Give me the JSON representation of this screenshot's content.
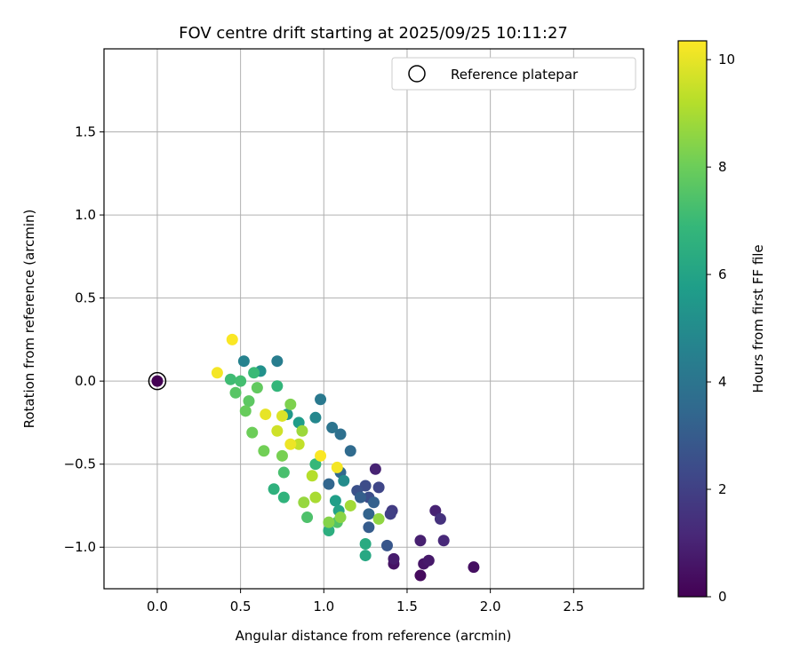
{
  "chart_data": {
    "type": "scatter",
    "title": "FOV centre drift starting at 2025/09/25 10:11:27",
    "xlabel": "Angular distance from reference (arcmin)",
    "ylabel": "Rotation from reference (arcmin)",
    "xlim": [
      -0.32,
      2.92
    ],
    "ylim": [
      -1.25,
      2.0
    ],
    "xticks": [
      0.0,
      0.5,
      1.0,
      1.5,
      2.0,
      2.5
    ],
    "xtick_labels": [
      "0.0",
      "0.5",
      "1.0",
      "1.5",
      "2.0",
      "2.5"
    ],
    "yticks": [
      -1.0,
      -0.5,
      0.0,
      0.5,
      1.0,
      1.5
    ],
    "ytick_labels": [
      "−1.0",
      "−0.5",
      "0.0",
      "0.5",
      "1.0",
      "1.5"
    ],
    "grid": true,
    "legend": {
      "position": "top-right",
      "entries": [
        "Reference platepar"
      ]
    },
    "reference_point": {
      "x": 0.0,
      "y": 0.0
    },
    "colorbar": {
      "label": "Hours from first FF file",
      "min": 0,
      "max": 10.35,
      "ticks": [
        0,
        2,
        4,
        6,
        8,
        10
      ],
      "tick_labels": [
        "0",
        "2",
        "4",
        "6",
        "8",
        "10"
      ],
      "colormap": [
        "#440154",
        "#482878",
        "#3e4989",
        "#31688e",
        "#26828e",
        "#1f9e89",
        "#35b779",
        "#6ece58",
        "#b5de2b",
        "#fde725"
      ]
    },
    "points": [
      {
        "x": 0.0,
        "y": 0.0,
        "t": 0.0
      },
      {
        "x": 1.58,
        "y": -1.17,
        "t": 0.3
      },
      {
        "x": 1.9,
        "y": -1.12,
        "t": 0.4
      },
      {
        "x": 1.42,
        "y": -1.1,
        "t": 0.5
      },
      {
        "x": 1.6,
        "y": -1.1,
        "t": 0.6
      },
      {
        "x": 1.63,
        "y": -1.08,
        "t": 0.7
      },
      {
        "x": 1.42,
        "y": -1.07,
        "t": 0.8
      },
      {
        "x": 1.58,
        "y": -0.96,
        "t": 0.9
      },
      {
        "x": 1.67,
        "y": -0.78,
        "t": 1.0
      },
      {
        "x": 1.31,
        "y": -0.53,
        "t": 1.0
      },
      {
        "x": 1.72,
        "y": -0.96,
        "t": 1.2
      },
      {
        "x": 1.7,
        "y": -0.83,
        "t": 1.5
      },
      {
        "x": 1.41,
        "y": -0.78,
        "t": 1.8
      },
      {
        "x": 1.4,
        "y": -0.8,
        "t": 2.0
      },
      {
        "x": 1.33,
        "y": -0.64,
        "t": 2.2
      },
      {
        "x": 1.25,
        "y": -0.63,
        "t": 2.4
      },
      {
        "x": 1.27,
        "y": -0.7,
        "t": 2.5
      },
      {
        "x": 1.2,
        "y": -0.66,
        "t": 2.6
      },
      {
        "x": 1.38,
        "y": -0.99,
        "t": 2.8
      },
      {
        "x": 1.27,
        "y": -0.88,
        "t": 3.0
      },
      {
        "x": 1.22,
        "y": -0.7,
        "t": 3.1
      },
      {
        "x": 1.3,
        "y": -0.73,
        "t": 3.2
      },
      {
        "x": 1.27,
        "y": -0.8,
        "t": 3.3
      },
      {
        "x": 1.03,
        "y": -0.62,
        "t": 3.4
      },
      {
        "x": 1.1,
        "y": -0.55,
        "t": 3.5
      },
      {
        "x": 1.16,
        "y": -0.42,
        "t": 3.6
      },
      {
        "x": 1.1,
        "y": -0.32,
        "t": 3.8
      },
      {
        "x": 1.05,
        "y": -0.28,
        "t": 4.0
      },
      {
        "x": 0.98,
        "y": -0.11,
        "t": 4.2
      },
      {
        "x": 0.72,
        "y": 0.12,
        "t": 4.4
      },
      {
        "x": 0.52,
        "y": 0.12,
        "t": 4.6
      },
      {
        "x": 0.95,
        "y": -0.22,
        "t": 4.8
      },
      {
        "x": 1.12,
        "y": -0.6,
        "t": 5.0
      },
      {
        "x": 0.62,
        "y": 0.06,
        "t": 5.2
      },
      {
        "x": 0.78,
        "y": -0.2,
        "t": 5.5
      },
      {
        "x": 0.85,
        "y": -0.25,
        "t": 5.7
      },
      {
        "x": 1.07,
        "y": -0.72,
        "t": 5.8
      },
      {
        "x": 1.09,
        "y": -0.78,
        "t": 6.0
      },
      {
        "x": 1.25,
        "y": -1.05,
        "t": 6.2
      },
      {
        "x": 1.25,
        "y": -0.98,
        "t": 6.3
      },
      {
        "x": 1.03,
        "y": -0.9,
        "t": 6.5
      },
      {
        "x": 0.7,
        "y": -0.65,
        "t": 6.6
      },
      {
        "x": 0.76,
        "y": -0.7,
        "t": 6.7
      },
      {
        "x": 0.72,
        "y": -0.03,
        "t": 6.8
      },
      {
        "x": 0.95,
        "y": -0.5,
        "t": 6.9
      },
      {
        "x": 0.58,
        "y": 0.05,
        "t": 7.0
      },
      {
        "x": 0.44,
        "y": 0.01,
        "t": 7.1
      },
      {
        "x": 0.5,
        "y": 0.0,
        "t": 7.2
      },
      {
        "x": 0.76,
        "y": -0.55,
        "t": 7.3
      },
      {
        "x": 0.9,
        "y": -0.82,
        "t": 7.4
      },
      {
        "x": 1.08,
        "y": -0.85,
        "t": 7.5
      },
      {
        "x": 0.47,
        "y": -0.07,
        "t": 7.6
      },
      {
        "x": 0.55,
        "y": -0.12,
        "t": 7.7
      },
      {
        "x": 0.6,
        "y": -0.04,
        "t": 7.8
      },
      {
        "x": 0.53,
        "y": -0.18,
        "t": 7.9
      },
      {
        "x": 0.57,
        "y": -0.31,
        "t": 8.0
      },
      {
        "x": 0.64,
        "y": -0.42,
        "t": 8.1
      },
      {
        "x": 0.75,
        "y": -0.45,
        "t": 8.2
      },
      {
        "x": 0.8,
        "y": -0.14,
        "t": 8.3
      },
      {
        "x": 1.03,
        "y": -0.85,
        "t": 8.4
      },
      {
        "x": 1.1,
        "y": -0.82,
        "t": 8.5
      },
      {
        "x": 1.33,
        "y": -0.83,
        "t": 8.6
      },
      {
        "x": 0.88,
        "y": -0.73,
        "t": 8.7
      },
      {
        "x": 0.87,
        "y": -0.3,
        "t": 8.8
      },
      {
        "x": 1.16,
        "y": -0.75,
        "t": 8.9
      },
      {
        "x": 0.95,
        "y": -0.7,
        "t": 9.0
      },
      {
        "x": 0.93,
        "y": -0.57,
        "t": 9.2
      },
      {
        "x": 0.85,
        "y": -0.38,
        "t": 9.4
      },
      {
        "x": 0.72,
        "y": -0.3,
        "t": 9.6
      },
      {
        "x": 0.75,
        "y": -0.21,
        "t": 9.8
      },
      {
        "x": 0.65,
        "y": -0.2,
        "t": 10.0
      },
      {
        "x": 0.36,
        "y": 0.05,
        "t": 10.2
      },
      {
        "x": 0.45,
        "y": 0.25,
        "t": 10.3
      },
      {
        "x": 0.98,
        "y": -0.45,
        "t": 10.3
      },
      {
        "x": 1.08,
        "y": -0.52,
        "t": 10.2
      },
      {
        "x": 0.8,
        "y": -0.38,
        "t": 10.1
      }
    ]
  }
}
